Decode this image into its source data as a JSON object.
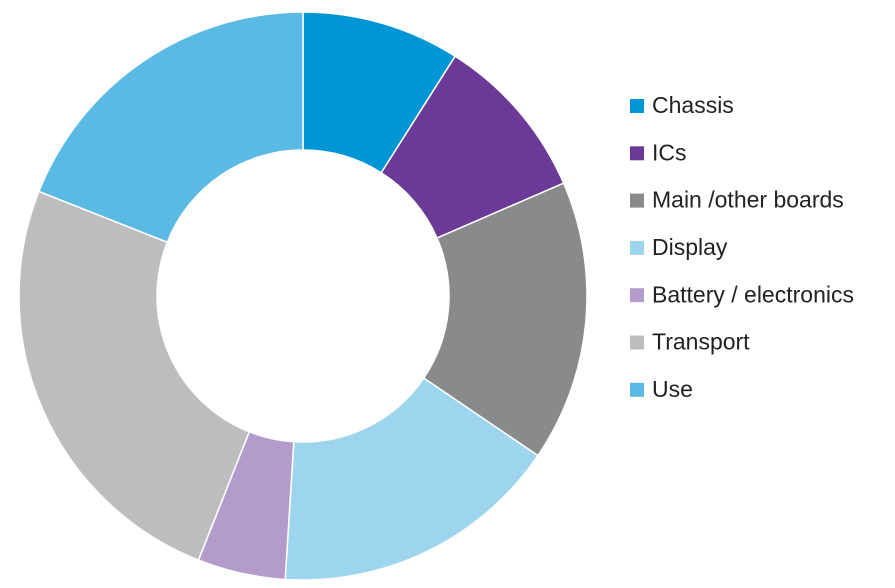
{
  "chart_data": {
    "type": "donut",
    "categories": [
      "Chassis",
      "ICs",
      "Main /other boards",
      "Display",
      "Battery / electronics",
      "Transport",
      "Use"
    ],
    "values": [
      9,
      9.5,
      16,
      16.5,
      5,
      25,
      19
    ],
    "colors": [
      "#0096d6",
      "#6b3a96",
      "#898a8c",
      "#9dd5ee",
      "#b39ccb",
      "#bcbdbf",
      "#5bbae3"
    ],
    "legend": "right"
  }
}
